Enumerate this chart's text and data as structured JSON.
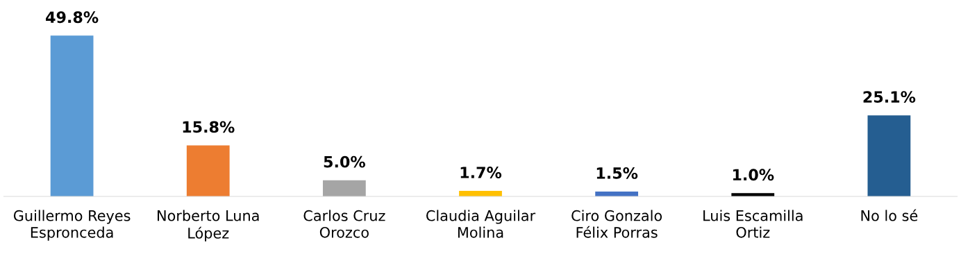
{
  "chart_data": {
    "type": "bar",
    "categories": [
      "Guillermo Reyes Espronceda",
      "Norberto Luna López",
      "Carlos Cruz Orozco",
      "Claudia Aguilar Molina",
      "Ciro Gonzalo Félix Porras",
      "Luis Escamilla Ortiz",
      "No lo sé"
    ],
    "values": [
      49.8,
      15.8,
      5.0,
      1.7,
      1.5,
      1.0,
      25.1
    ],
    "value_labels": [
      "49.8%",
      "15.8%",
      "5.0%",
      "1.7%",
      "1.5%",
      "1.0%",
      "25.1%"
    ],
    "colors": [
      "#5b9bd5",
      "#ed7d31",
      "#a5a5a5",
      "#ffc000",
      "#4472c4",
      "#000000",
      "#255e91"
    ],
    "grid": false,
    "legend": false
  }
}
